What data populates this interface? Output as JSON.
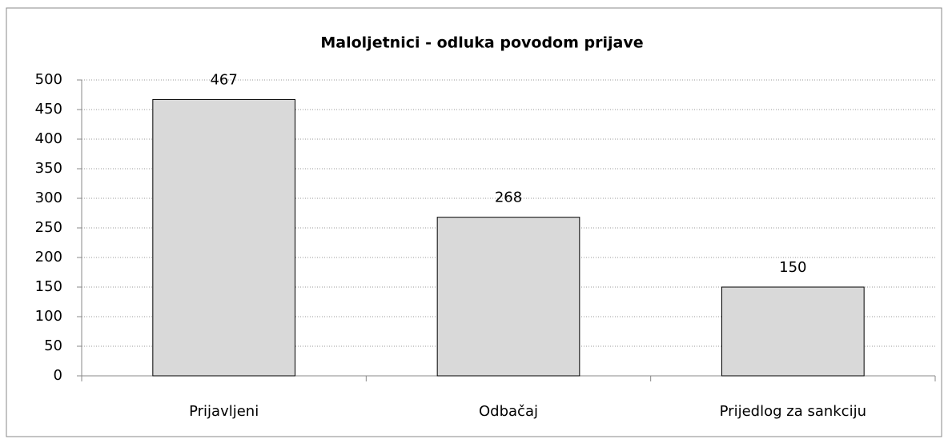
{
  "chart_data": {
    "type": "bar",
    "title": "Maloljetnici - odluka povodom prijave",
    "categories": [
      "Prijavljeni",
      "Odbačaj",
      "Prijedlog za sankciju"
    ],
    "values": [
      467,
      268,
      150
    ],
    "color": "#d9d9d9",
    "ylim": [
      0,
      500
    ],
    "yticks": [
      0,
      50,
      100,
      150,
      200,
      250,
      300,
      350,
      400,
      450,
      500
    ],
    "grid": true
  }
}
